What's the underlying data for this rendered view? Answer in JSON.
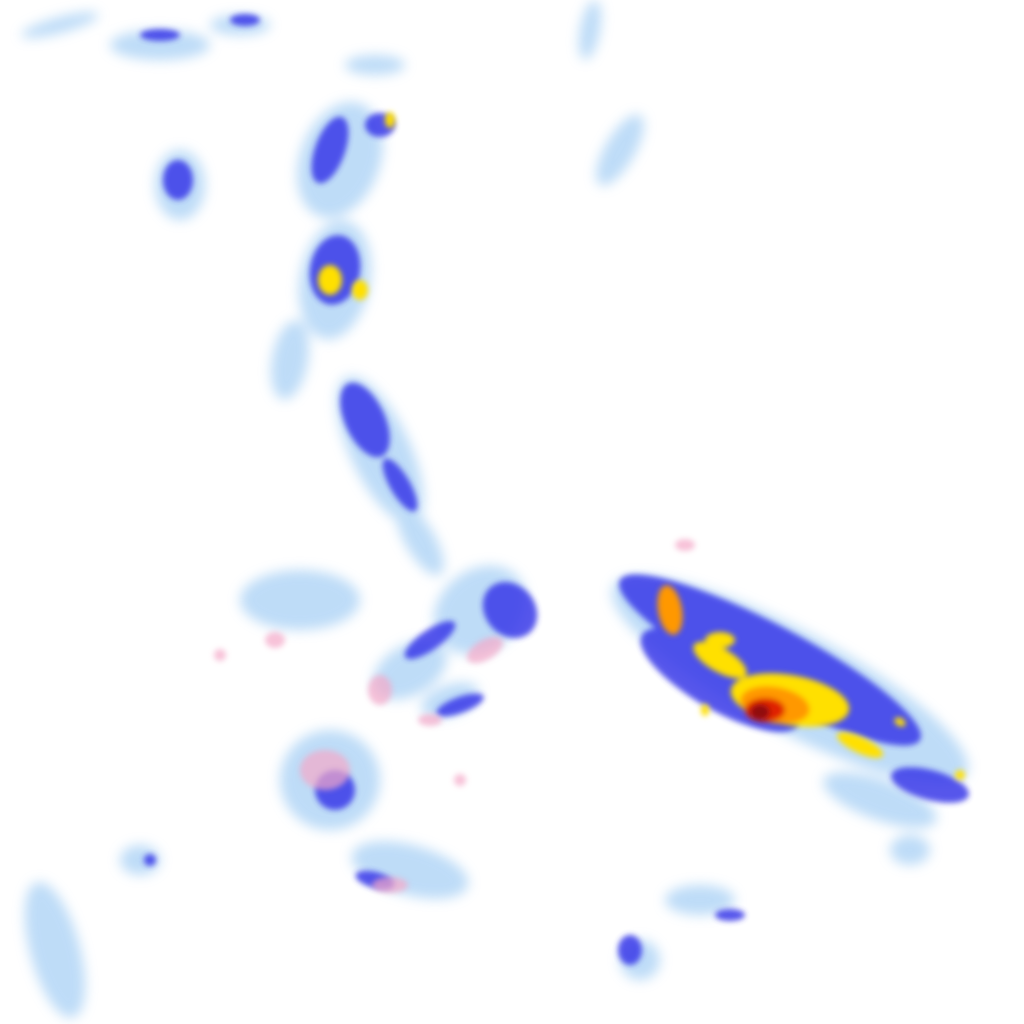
{
  "map": {
    "kind": "precipitation-radar-overlay",
    "palette": {
      "background": "#ffffff",
      "very_light": "#a8d0f5",
      "light": "#6a8cf0",
      "moderate": "#3838e8",
      "heavy": "#ffe000",
      "very_heavy": "#ff9800",
      "extreme": "#e02000",
      "severe": "#901010",
      "mixed_precip": "#f4a8c8"
    }
  }
}
